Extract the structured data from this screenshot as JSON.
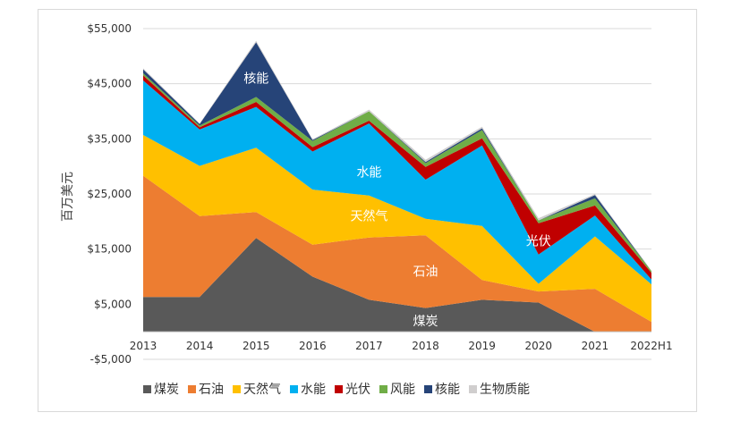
{
  "chart_data": {
    "type": "area",
    "stacked": true,
    "ylabel": "百万美元",
    "ylim": [
      -5000,
      55000
    ],
    "x": [
      "2013",
      "2014",
      "2015",
      "2016",
      "2017",
      "2018",
      "2019",
      "2020",
      "2021",
      "2022H1"
    ],
    "yticks": [
      "-$5,000",
      "$5,000",
      "$15,000",
      "$25,000",
      "$35,000",
      "$45,000",
      "$55,000"
    ],
    "ytick_values": [
      -5000,
      5000,
      15000,
      25000,
      35000,
      45000,
      55000
    ],
    "grid": true,
    "legend_position": "bottom",
    "series": [
      {
        "name": "煤炭",
        "color": "#595959",
        "values": [
          6300,
          6300,
          17000,
          10000,
          5800,
          4300,
          5800,
          5300,
          0,
          0
        ]
      },
      {
        "name": "石油",
        "color": "#ed7d31",
        "values": [
          22000,
          14700,
          4700,
          5800,
          11300,
          13200,
          3600,
          2000,
          7800,
          1800
        ]
      },
      {
        "name": "天然气",
        "color": "#ffc000",
        "values": [
          7400,
          9100,
          11700,
          10000,
          7600,
          3000,
          9800,
          1400,
          9500,
          6800
        ]
      },
      {
        "name": "水能",
        "color": "#00b0f0",
        "values": [
          9900,
          6600,
          7400,
          6900,
          13100,
          7100,
          14600,
          5300,
          3800,
          900
        ]
      },
      {
        "name": "光伏",
        "color": "#c00000",
        "values": [
          900,
          400,
          900,
          800,
          500,
          2300,
          1300,
          5700,
          1800,
          1200
        ]
      },
      {
        "name": "风能",
        "color": "#70ad47",
        "values": [
          400,
          300,
          900,
          1100,
          1700,
          700,
          1500,
          500,
          1300,
          300
        ]
      },
      {
        "name": "核能",
        "color": "#264478",
        "values": [
          700,
          300,
          9900,
          200,
          0,
          200,
          300,
          0,
          600,
          0
        ]
      },
      {
        "name": "生物质能",
        "color": "#d0cece",
        "values": [
          200,
          100,
          300,
          100,
          300,
          400,
          300,
          400,
          200,
          100
        ]
      }
    ],
    "annotations": [
      {
        "text": "核能",
        "x": "2015",
        "y": 46000
      },
      {
        "text": "水能",
        "x": "2017",
        "y": 29000
      },
      {
        "text": "天然气",
        "x": "2017",
        "y": 21000
      },
      {
        "text": "石油",
        "x": "2018",
        "y": 11000
      },
      {
        "text": "煤炭",
        "x": "2018",
        "y": 2000
      },
      {
        "text": "光伏",
        "x": "2020",
        "y": 16500
      }
    ]
  }
}
